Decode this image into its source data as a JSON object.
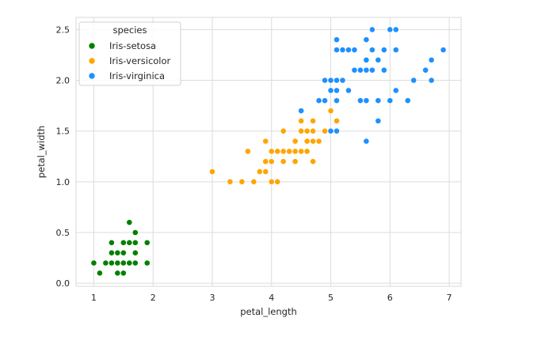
{
  "chart_data": {
    "type": "scatter",
    "xlabel": "petal_length",
    "ylabel": "petal_width",
    "xlim": [
      0.7,
      7.2
    ],
    "ylim": [
      -0.03,
      2.62
    ],
    "xticks": [
      "1",
      "2",
      "3",
      "4",
      "5",
      "6",
      "7"
    ],
    "yticks": [
      "0.0",
      "0.5",
      "1.0",
      "1.5",
      "2.0",
      "2.5"
    ],
    "grid": true,
    "legend": {
      "title": "species",
      "position": "top-left"
    },
    "series": [
      {
        "name": "Iris-setosa",
        "color": "#008000",
        "points": [
          [
            1.4,
            0.2
          ],
          [
            1.4,
            0.2
          ],
          [
            1.3,
            0.2
          ],
          [
            1.5,
            0.2
          ],
          [
            1.4,
            0.2
          ],
          [
            1.7,
            0.4
          ],
          [
            1.4,
            0.3
          ],
          [
            1.5,
            0.2
          ],
          [
            1.4,
            0.2
          ],
          [
            1.5,
            0.1
          ],
          [
            1.5,
            0.2
          ],
          [
            1.6,
            0.2
          ],
          [
            1.4,
            0.1
          ],
          [
            1.1,
            0.1
          ],
          [
            1.2,
            0.2
          ],
          [
            1.5,
            0.4
          ],
          [
            1.3,
            0.4
          ],
          [
            1.4,
            0.3
          ],
          [
            1.7,
            0.3
          ],
          [
            1.5,
            0.3
          ],
          [
            1.7,
            0.2
          ],
          [
            1.5,
            0.4
          ],
          [
            1.0,
            0.2
          ],
          [
            1.7,
            0.5
          ],
          [
            1.9,
            0.2
          ],
          [
            1.6,
            0.2
          ],
          [
            1.6,
            0.4
          ],
          [
            1.5,
            0.2
          ],
          [
            1.4,
            0.2
          ],
          [
            1.6,
            0.2
          ],
          [
            1.6,
            0.2
          ],
          [
            1.5,
            0.4
          ],
          [
            1.5,
            0.1
          ],
          [
            1.4,
            0.2
          ],
          [
            1.5,
            0.1
          ],
          [
            1.2,
            0.2
          ],
          [
            1.3,
            0.2
          ],
          [
            1.5,
            0.1
          ],
          [
            1.3,
            0.2
          ],
          [
            1.5,
            0.2
          ],
          [
            1.3,
            0.3
          ],
          [
            1.3,
            0.3
          ],
          [
            1.3,
            0.2
          ],
          [
            1.6,
            0.6
          ],
          [
            1.9,
            0.4
          ],
          [
            1.4,
            0.3
          ],
          [
            1.6,
            0.2
          ],
          [
            1.4,
            0.2
          ],
          [
            1.5,
            0.2
          ],
          [
            1.4,
            0.2
          ]
        ]
      },
      {
        "name": "Iris-versicolor",
        "color": "#FFA500",
        "points": [
          [
            4.7,
            1.4
          ],
          [
            4.5,
            1.5
          ],
          [
            4.9,
            1.5
          ],
          [
            4.0,
            1.3
          ],
          [
            4.6,
            1.5
          ],
          [
            4.5,
            1.3
          ],
          [
            4.7,
            1.6
          ],
          [
            3.3,
            1.0
          ],
          [
            4.6,
            1.3
          ],
          [
            3.9,
            1.4
          ],
          [
            3.5,
            1.0
          ],
          [
            4.2,
            1.5
          ],
          [
            4.0,
            1.0
          ],
          [
            4.7,
            1.4
          ],
          [
            3.6,
            1.3
          ],
          [
            4.4,
            1.4
          ],
          [
            4.5,
            1.5
          ],
          [
            4.1,
            1.0
          ],
          [
            4.5,
            1.5
          ],
          [
            3.9,
            1.1
          ],
          [
            4.8,
            1.8
          ],
          [
            4.0,
            1.3
          ],
          [
            4.9,
            1.5
          ],
          [
            4.7,
            1.2
          ],
          [
            4.3,
            1.3
          ],
          [
            4.4,
            1.4
          ],
          [
            4.8,
            1.4
          ],
          [
            5.0,
            1.7
          ],
          [
            4.5,
            1.5
          ],
          [
            3.5,
            1.0
          ],
          [
            3.8,
            1.1
          ],
          [
            3.7,
            1.0
          ],
          [
            3.9,
            1.2
          ],
          [
            5.1,
            1.6
          ],
          [
            4.5,
            1.5
          ],
          [
            4.5,
            1.6
          ],
          [
            4.7,
            1.5
          ],
          [
            4.4,
            1.3
          ],
          [
            4.1,
            1.3
          ],
          [
            4.0,
            1.3
          ],
          [
            4.4,
            1.2
          ],
          [
            4.6,
            1.4
          ],
          [
            4.0,
            1.2
          ],
          [
            3.3,
            1.0
          ],
          [
            4.2,
            1.3
          ],
          [
            4.2,
            1.2
          ],
          [
            4.2,
            1.3
          ],
          [
            4.3,
            1.3
          ],
          [
            3.0,
            1.1
          ],
          [
            4.1,
            1.3
          ]
        ]
      },
      {
        "name": "Iris-virginica",
        "color": "#1E90FF",
        "points": [
          [
            6.0,
            2.5
          ],
          [
            5.1,
            1.9
          ],
          [
            5.9,
            2.1
          ],
          [
            5.6,
            1.8
          ],
          [
            5.8,
            2.2
          ],
          [
            6.6,
            2.1
          ],
          [
            4.5,
            1.7
          ],
          [
            6.3,
            1.8
          ],
          [
            5.8,
            1.8
          ],
          [
            6.1,
            2.5
          ],
          [
            5.1,
            2.0
          ],
          [
            5.3,
            1.9
          ],
          [
            5.5,
            2.1
          ],
          [
            5.0,
            2.0
          ],
          [
            5.1,
            2.4
          ],
          [
            5.3,
            2.3
          ],
          [
            5.5,
            1.8
          ],
          [
            6.7,
            2.2
          ],
          [
            6.9,
            2.3
          ],
          [
            5.0,
            1.5
          ],
          [
            5.7,
            2.3
          ],
          [
            4.9,
            2.0
          ],
          [
            6.7,
            2.0
          ],
          [
            4.9,
            1.8
          ],
          [
            5.7,
            2.1
          ],
          [
            6.0,
            1.8
          ],
          [
            4.8,
            1.8
          ],
          [
            4.9,
            1.8
          ],
          [
            5.6,
            2.1
          ],
          [
            5.8,
            1.6
          ],
          [
            6.1,
            1.9
          ],
          [
            6.4,
            2.0
          ],
          [
            5.6,
            2.2
          ],
          [
            5.1,
            1.5
          ],
          [
            5.6,
            1.4
          ],
          [
            6.1,
            2.3
          ],
          [
            5.6,
            2.4
          ],
          [
            5.5,
            1.8
          ],
          [
            4.8,
            1.8
          ],
          [
            5.4,
            2.1
          ],
          [
            5.6,
            2.4
          ],
          [
            5.1,
            2.3
          ],
          [
            5.1,
            1.9
          ],
          [
            5.9,
            2.3
          ],
          [
            5.7,
            2.5
          ],
          [
            5.2,
            2.3
          ],
          [
            5.0,
            1.9
          ],
          [
            5.2,
            2.0
          ],
          [
            5.4,
            2.3
          ],
          [
            5.1,
            1.8
          ]
        ]
      }
    ]
  }
}
